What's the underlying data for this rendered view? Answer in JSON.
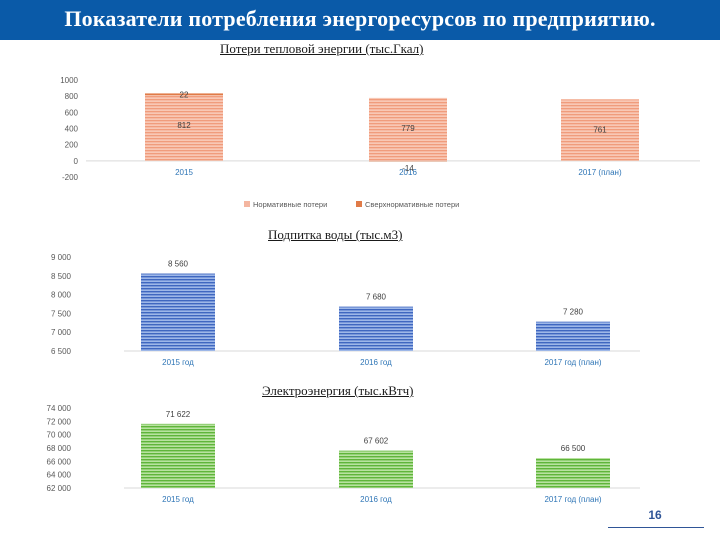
{
  "page": {
    "title": "Показатели потребления энергоресурсов по предприятию.",
    "page_number": "16"
  },
  "chart_data": [
    {
      "type": "bar",
      "title": "Потери тепловой энергии (тыс.Гкал)",
      "stacked": true,
      "categories": [
        "2015",
        "2016",
        "2017 (план)"
      ],
      "series": [
        {
          "name": "Нормативные потери",
          "values": [
            812,
            779,
            761
          ],
          "color": "#f4b6a0"
        },
        {
          "name": "Сверхнормативные потери",
          "values": [
            22,
            -14,
            0
          ],
          "color": "#e07b48"
        }
      ],
      "data_labels": [
        {
          "category": 0,
          "series": 1,
          "text": "22"
        },
        {
          "category": 0,
          "series": 0,
          "text": "812"
        },
        {
          "category": 1,
          "series": 0,
          "text": "779"
        },
        {
          "category": 1,
          "series": 1,
          "text": "-14"
        },
        {
          "category": 2,
          "series": 0,
          "text": "761"
        }
      ],
      "ylim": [
        -200,
        1000
      ],
      "yticks": [
        "1000",
        "800",
        "600",
        "400",
        "200",
        "0",
        "-200"
      ],
      "ytick_values": [
        1000,
        800,
        600,
        400,
        200,
        0,
        -200
      ],
      "legend": "bottom",
      "grid": false
    },
    {
      "type": "bar",
      "title": "Подпитка воды (тыс.м3)",
      "categories": [
        "2015 год",
        "2016 год",
        "2017 год (план)"
      ],
      "values": [
        8560,
        7680,
        7280
      ],
      "value_labels": [
        "8 560",
        "7 680",
        "7 280"
      ],
      "color": "#4a74c9",
      "ylim": [
        6500,
        9000
      ],
      "yticks": [
        "9 000",
        "8 500",
        "8 000",
        "7 500",
        "7 000",
        "6 500"
      ],
      "ytick_values": [
        9000,
        8500,
        8000,
        7500,
        7000,
        6500
      ],
      "grid": false
    },
    {
      "type": "bar",
      "title": "Электроэнергия (тыс.кВтч)",
      "categories": [
        "2015 год",
        "2016 год",
        "2017 год (план)"
      ],
      "values": [
        71622,
        67602,
        66500
      ],
      "value_labels": [
        "71 622",
        "67 602",
        "66 500"
      ],
      "color": "#6cbf45",
      "ylim": [
        62000,
        74000
      ],
      "yticks": [
        "74 000",
        "72 000",
        "70 000",
        "68 000",
        "66 000",
        "64 000",
        "62 000"
      ],
      "ytick_values": [
        74000,
        72000,
        70000,
        68000,
        66000,
        64000,
        62000
      ],
      "grid": false
    }
  ]
}
